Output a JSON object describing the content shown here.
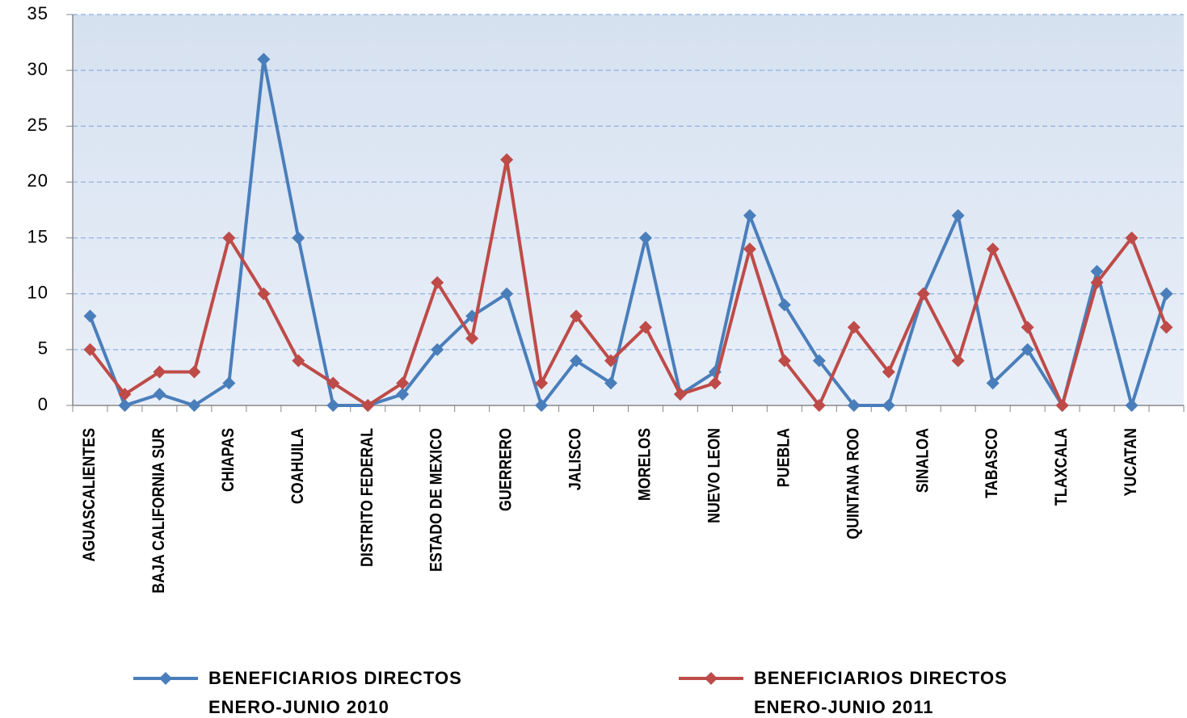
{
  "chart_data": {
    "type": "line",
    "categories": [
      "AGUASCALIENTES",
      null,
      "BAJA CALIFORNIA SUR",
      null,
      "CHIAPAS",
      null,
      "COAHUILA",
      null,
      "DISTRITO FEDERAL",
      null,
      "ESTADO DE MEXICO",
      null,
      "GUERRERO",
      null,
      "JALISCO",
      null,
      "MORELOS",
      null,
      "NUEVO LEON",
      null,
      "PUEBLA",
      null,
      "QUINTANA ROO",
      null,
      "SINALOA",
      null,
      "TABASCO",
      null,
      "TLAXCALA",
      null,
      "YUCATAN",
      null
    ],
    "series": [
      {
        "name": "BENEFICIARIOS DIRECTOS ENERO-JUNIO 2010",
        "color": "#4a7ebb",
        "values": [
          8,
          0,
          1,
          0,
          2,
          31,
          15,
          0,
          0,
          1,
          5,
          8,
          10,
          0,
          4,
          2,
          15,
          1,
          3,
          17,
          9,
          4,
          0,
          0,
          10,
          17,
          2,
          5,
          0,
          12,
          0,
          10
        ]
      },
      {
        "name": "BENEFICIARIOS DIRECTOS ENERO-JUNIO 2011",
        "color": "#be4b48",
        "values": [
          5,
          1,
          3,
          3,
          15,
          10,
          4,
          2,
          0,
          2,
          11,
          6,
          22,
          2,
          8,
          4,
          7,
          1,
          2,
          14,
          4,
          0,
          7,
          3,
          10,
          4,
          14,
          7,
          0,
          11,
          15,
          7
        ]
      }
    ],
    "ylim": [
      0,
      35
    ],
    "yticks": [
      0,
      5,
      10,
      15,
      20,
      25,
      30,
      35
    ],
    "grid": true,
    "legend": "bottom"
  }
}
